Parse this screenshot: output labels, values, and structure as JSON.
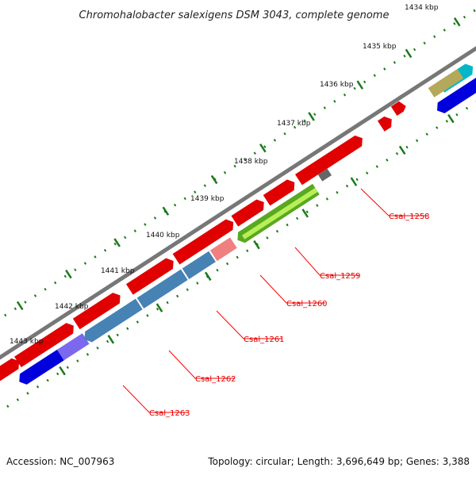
{
  "title": "Chromohalobacter salexigens DSM 3043, complete genome",
  "ticks": [
    {
      "label": "1434 kbp",
      "pos": 1434
    },
    {
      "label": "1435 kbp",
      "pos": 1435
    },
    {
      "label": "1436 kbp",
      "pos": 1436
    },
    {
      "label": "1437 kbp",
      "pos": 1437
    },
    {
      "label": "1438 kbp",
      "pos": 1438
    },
    {
      "label": "1439 kbp",
      "pos": 1439
    },
    {
      "label": "1440 kbp",
      "pos": 1440
    },
    {
      "label": "1441 kbp",
      "pos": 1441
    },
    {
      "label": "1442 kbp",
      "pos": 1442
    },
    {
      "label": "1443 kbp",
      "pos": 1443
    }
  ],
  "gene_labels": [
    {
      "name": "Csal_1258",
      "color": "#9acd32"
    },
    {
      "name": "Csal_1259",
      "color": "#f08080"
    },
    {
      "name": "Csal_1260",
      "color": "#4682b4"
    },
    {
      "name": "Csal_1261",
      "color": "#4682b4"
    },
    {
      "name": "Csal_1262",
      "color": "#4682b4"
    },
    {
      "name": "Csal_1263",
      "color": "#7b68ee"
    }
  ],
  "footer": {
    "accession": "Accession: NC_007963",
    "summary": "Topology: circular; Length: 3,696,649 bp; Genes: 3,388"
  },
  "colors": {
    "forward_cds": "#ff0000",
    "reverse_cds": "#0000dd",
    "backbone": "#888888",
    "tick": "#1a7a1a",
    "label_line": "#ff0000"
  }
}
